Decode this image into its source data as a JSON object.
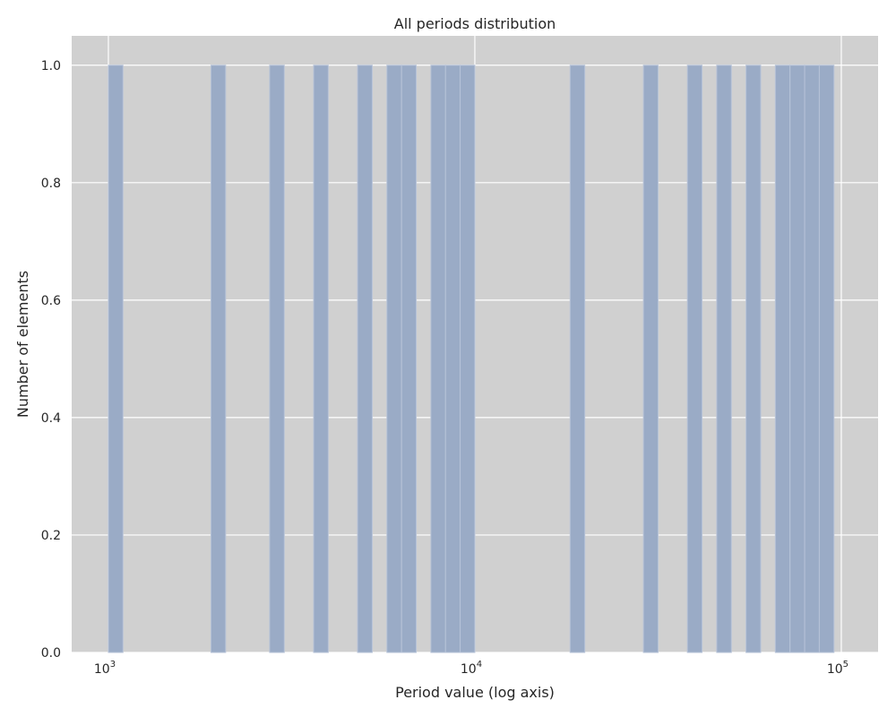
{
  "chart_data": {
    "type": "bar",
    "title": "All periods distribution",
    "xlabel": "Period value (log axis)",
    "ylabel": "Number of elements",
    "x_scale": "log",
    "xlim": [
      794,
      126000
    ],
    "ylim": [
      0,
      1.05
    ],
    "grid": true,
    "x_ticks": [
      {
        "value": 1000,
        "base": "10",
        "exp": "3"
      },
      {
        "value": 10000,
        "base": "10",
        "exp": "4"
      },
      {
        "value": 100000,
        "base": "10",
        "exp": "5"
      }
    ],
    "y_ticks": [
      {
        "value": 0.0,
        "label": "0.0"
      },
      {
        "value": 0.2,
        "label": "0.2"
      },
      {
        "value": 0.4,
        "label": "0.4"
      },
      {
        "value": 0.6,
        "label": "0.6"
      },
      {
        "value": 0.8,
        "label": "0.8"
      },
      {
        "value": 1.0,
        "label": "1.0"
      }
    ],
    "bins": [
      {
        "x0": 1000,
        "x1": 1096,
        "count": 1
      },
      {
        "x0": 1905,
        "x1": 2089,
        "count": 1
      },
      {
        "x0": 2754,
        "x1": 3020,
        "count": 1
      },
      {
        "x0": 3631,
        "x1": 3981,
        "count": 1
      },
      {
        "x0": 4786,
        "x1": 5248,
        "count": 1
      },
      {
        "x0": 5754,
        "x1": 6310,
        "count": 1
      },
      {
        "x0": 6310,
        "x1": 6918,
        "count": 1
      },
      {
        "x0": 7586,
        "x1": 8318,
        "count": 1
      },
      {
        "x0": 8318,
        "x1": 9120,
        "count": 1
      },
      {
        "x0": 9120,
        "x1": 10000,
        "count": 1
      },
      {
        "x0": 18197,
        "x1": 19953,
        "count": 1
      },
      {
        "x0": 28840,
        "x1": 31623,
        "count": 1
      },
      {
        "x0": 38019,
        "x1": 41687,
        "count": 1
      },
      {
        "x0": 45709,
        "x1": 50119,
        "count": 1
      },
      {
        "x0": 54954,
        "x1": 60256,
        "count": 1
      },
      {
        "x0": 66069,
        "x1": 72444,
        "count": 1
      },
      {
        "x0": 72444,
        "x1": 79433,
        "count": 1
      },
      {
        "x0": 79433,
        "x1": 87096,
        "count": 1
      },
      {
        "x0": 87096,
        "x1": 95499,
        "count": 1
      }
    ],
    "colors": {
      "plot_background": "#d0d0d0",
      "grid": "#ffffff",
      "bar_fill": "#9aabc6",
      "bar_edge": "#b7c3d8",
      "text": "#262626"
    }
  }
}
